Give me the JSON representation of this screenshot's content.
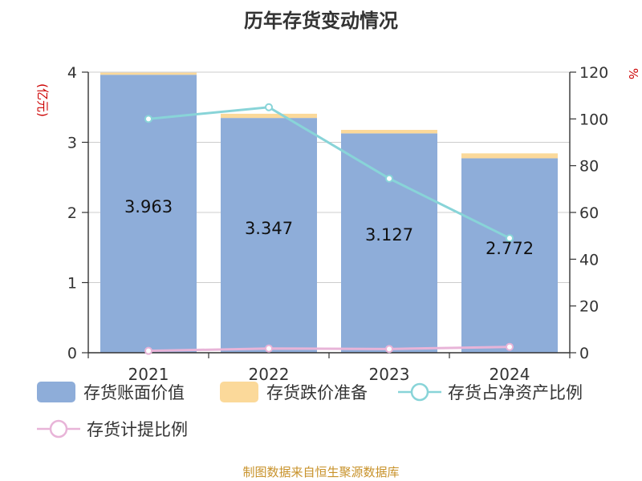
{
  "title": "历年存货变动情况",
  "source_note": "制图数据来自恒生聚源数据库",
  "chart_data": {
    "type": "bar",
    "categories": [
      "2021",
      "2022",
      "2023",
      "2024"
    ],
    "stacked": true,
    "left_axis": {
      "label": "(亿元)",
      "ylim": [
        0,
        4
      ],
      "ticks": [
        0,
        1,
        2,
        3,
        4
      ]
    },
    "right_axis": {
      "label": "%",
      "ylim": [
        0,
        120
      ],
      "ticks": [
        0,
        20,
        40,
        60,
        80,
        100,
        120
      ]
    },
    "series": [
      {
        "name": "存货账面价值",
        "type": "bar",
        "axis": "left",
        "color": "#8eadd9",
        "values": [
          3.963,
          3.347,
          3.127,
          2.772
        ],
        "show_labels": true
      },
      {
        "name": "存货跌价准备",
        "type": "bar",
        "axis": "left",
        "color": "#fbd99a",
        "values": [
          0.03,
          0.06,
          0.05,
          0.07
        ],
        "show_labels": false
      },
      {
        "name": "存货占净资产比例",
        "type": "line",
        "axis": "right",
        "color": "#88d4d8",
        "values": [
          100,
          105,
          74.5,
          49
        ]
      },
      {
        "name": "存货计提比例",
        "type": "line",
        "axis": "right",
        "color": "#e8b4d8",
        "values": [
          0.8,
          1.8,
          1.6,
          2.5
        ]
      }
    ],
    "grid": true,
    "legend_position": "bottom"
  }
}
